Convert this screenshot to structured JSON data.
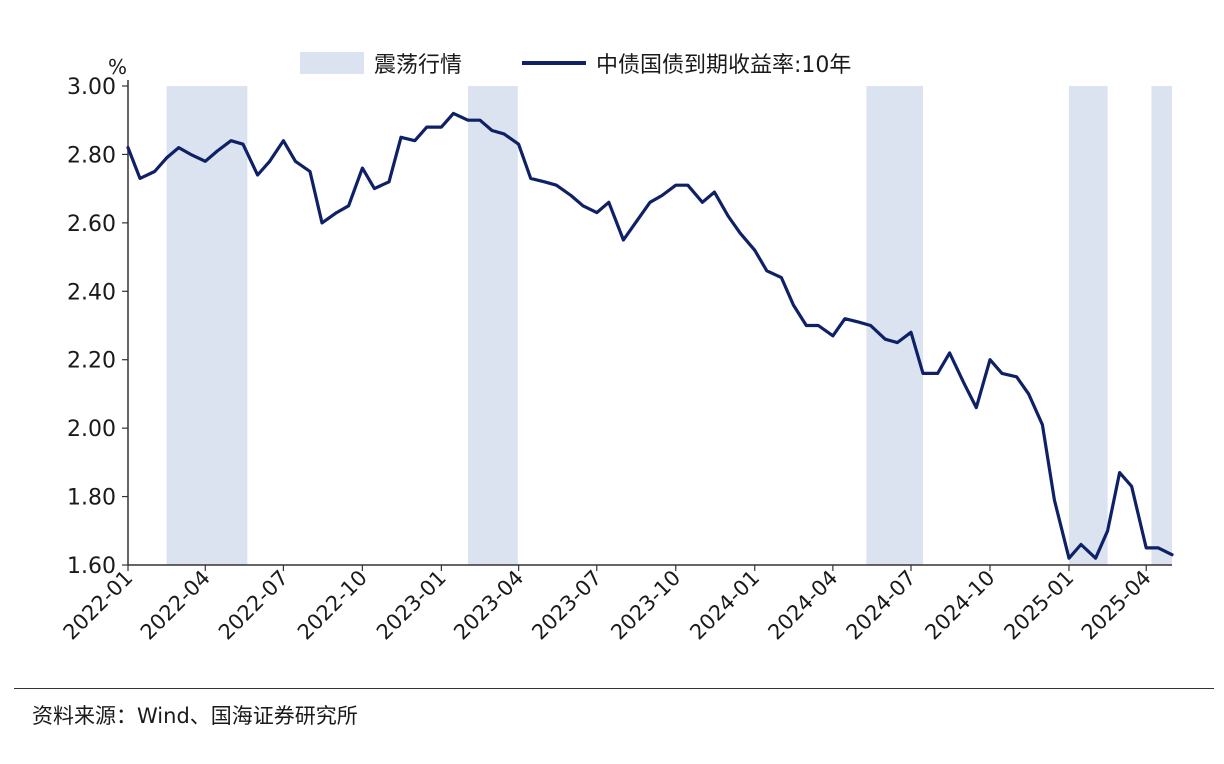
{
  "chart_data": {
    "type": "line",
    "title": "",
    "ylabel": "%",
    "xlabel": "",
    "ylim": [
      1.6,
      3.0
    ],
    "xlim": [
      "2022-01",
      "2025-05"
    ],
    "y_ticks": [
      "3.00",
      "2.80",
      "2.60",
      "2.40",
      "2.20",
      "2.00",
      "1.80",
      "1.60"
    ],
    "x_ticks": [
      "2022-01",
      "2022-04",
      "2022-07",
      "2022-10",
      "2023-01",
      "2023-04",
      "2023-07",
      "2023-10",
      "2024-01",
      "2024-04",
      "2024-07",
      "2024-10",
      "2025-01",
      "2025-04"
    ],
    "grid": false,
    "legend_position": "top",
    "series": [
      {
        "name": "中债国债到期收益率:10年",
        "color": "#0f2166",
        "x": [
          "2022-01-01",
          "2022-01-15",
          "2022-02-01",
          "2022-02-15",
          "2022-03-01",
          "2022-03-15",
          "2022-04-01",
          "2022-04-15",
          "2022-05-01",
          "2022-05-15",
          "2022-06-01",
          "2022-06-15",
          "2022-07-01",
          "2022-07-15",
          "2022-08-01",
          "2022-08-15",
          "2022-09-01",
          "2022-09-15",
          "2022-10-01",
          "2022-10-15",
          "2022-11-01",
          "2022-11-15",
          "2022-12-01",
          "2022-12-15",
          "2023-01-01",
          "2023-01-15",
          "2023-02-01",
          "2023-02-15",
          "2023-03-01",
          "2023-03-15",
          "2023-04-01",
          "2023-04-15",
          "2023-05-01",
          "2023-05-15",
          "2023-06-01",
          "2023-06-15",
          "2023-07-01",
          "2023-07-15",
          "2023-08-01",
          "2023-08-15",
          "2023-09-01",
          "2023-09-15",
          "2023-10-01",
          "2023-10-15",
          "2023-11-01",
          "2023-11-15",
          "2023-12-01",
          "2023-12-15",
          "2024-01-01",
          "2024-01-15",
          "2024-02-01",
          "2024-02-15",
          "2024-03-01",
          "2024-03-15",
          "2024-04-01",
          "2024-04-15",
          "2024-05-01",
          "2024-05-15",
          "2024-06-01",
          "2024-06-15",
          "2024-07-01",
          "2024-07-15",
          "2024-08-01",
          "2024-08-15",
          "2024-09-01",
          "2024-09-15",
          "2024-10-01",
          "2024-10-15",
          "2024-11-01",
          "2024-11-15",
          "2024-12-01",
          "2024-12-15",
          "2025-01-01",
          "2025-01-15",
          "2025-02-01",
          "2025-02-15",
          "2025-03-01",
          "2025-03-15",
          "2025-04-01",
          "2025-04-15",
          "2025-05-01"
        ],
        "values": [
          2.82,
          2.73,
          2.75,
          2.79,
          2.82,
          2.8,
          2.78,
          2.81,
          2.84,
          2.83,
          2.74,
          2.78,
          2.84,
          2.78,
          2.75,
          2.6,
          2.63,
          2.65,
          2.76,
          2.7,
          2.72,
          2.85,
          2.84,
          2.88,
          2.88,
          2.92,
          2.9,
          2.9,
          2.87,
          2.86,
          2.83,
          2.73,
          2.72,
          2.71,
          2.68,
          2.65,
          2.63,
          2.66,
          2.55,
          2.6,
          2.66,
          2.68,
          2.71,
          2.71,
          2.66,
          2.69,
          2.62,
          2.57,
          2.52,
          2.46,
          2.44,
          2.36,
          2.3,
          2.3,
          2.27,
          2.32,
          2.31,
          2.3,
          2.26,
          2.25,
          2.28,
          2.16,
          2.16,
          2.22,
          2.13,
          2.06,
          2.2,
          2.16,
          2.15,
          2.1,
          2.01,
          1.79,
          1.62,
          1.66,
          1.62,
          1.7,
          1.87,
          1.83,
          1.65,
          1.65,
          1.63
        ]
      }
    ],
    "bands": {
      "name": "震荡行情",
      "color": "#dbe3f0",
      "ranges": [
        [
          "2022-02-15",
          "2022-05-20"
        ],
        [
          "2023-02-01",
          "2023-03-31"
        ],
        [
          "2024-05-10",
          "2024-07-15"
        ],
        [
          "2025-01-01",
          "2025-02-15"
        ],
        [
          "2025-04-07",
          "2025-05-01"
        ]
      ]
    }
  },
  "source_text": "资料来源：Wind、国海证券研究所"
}
